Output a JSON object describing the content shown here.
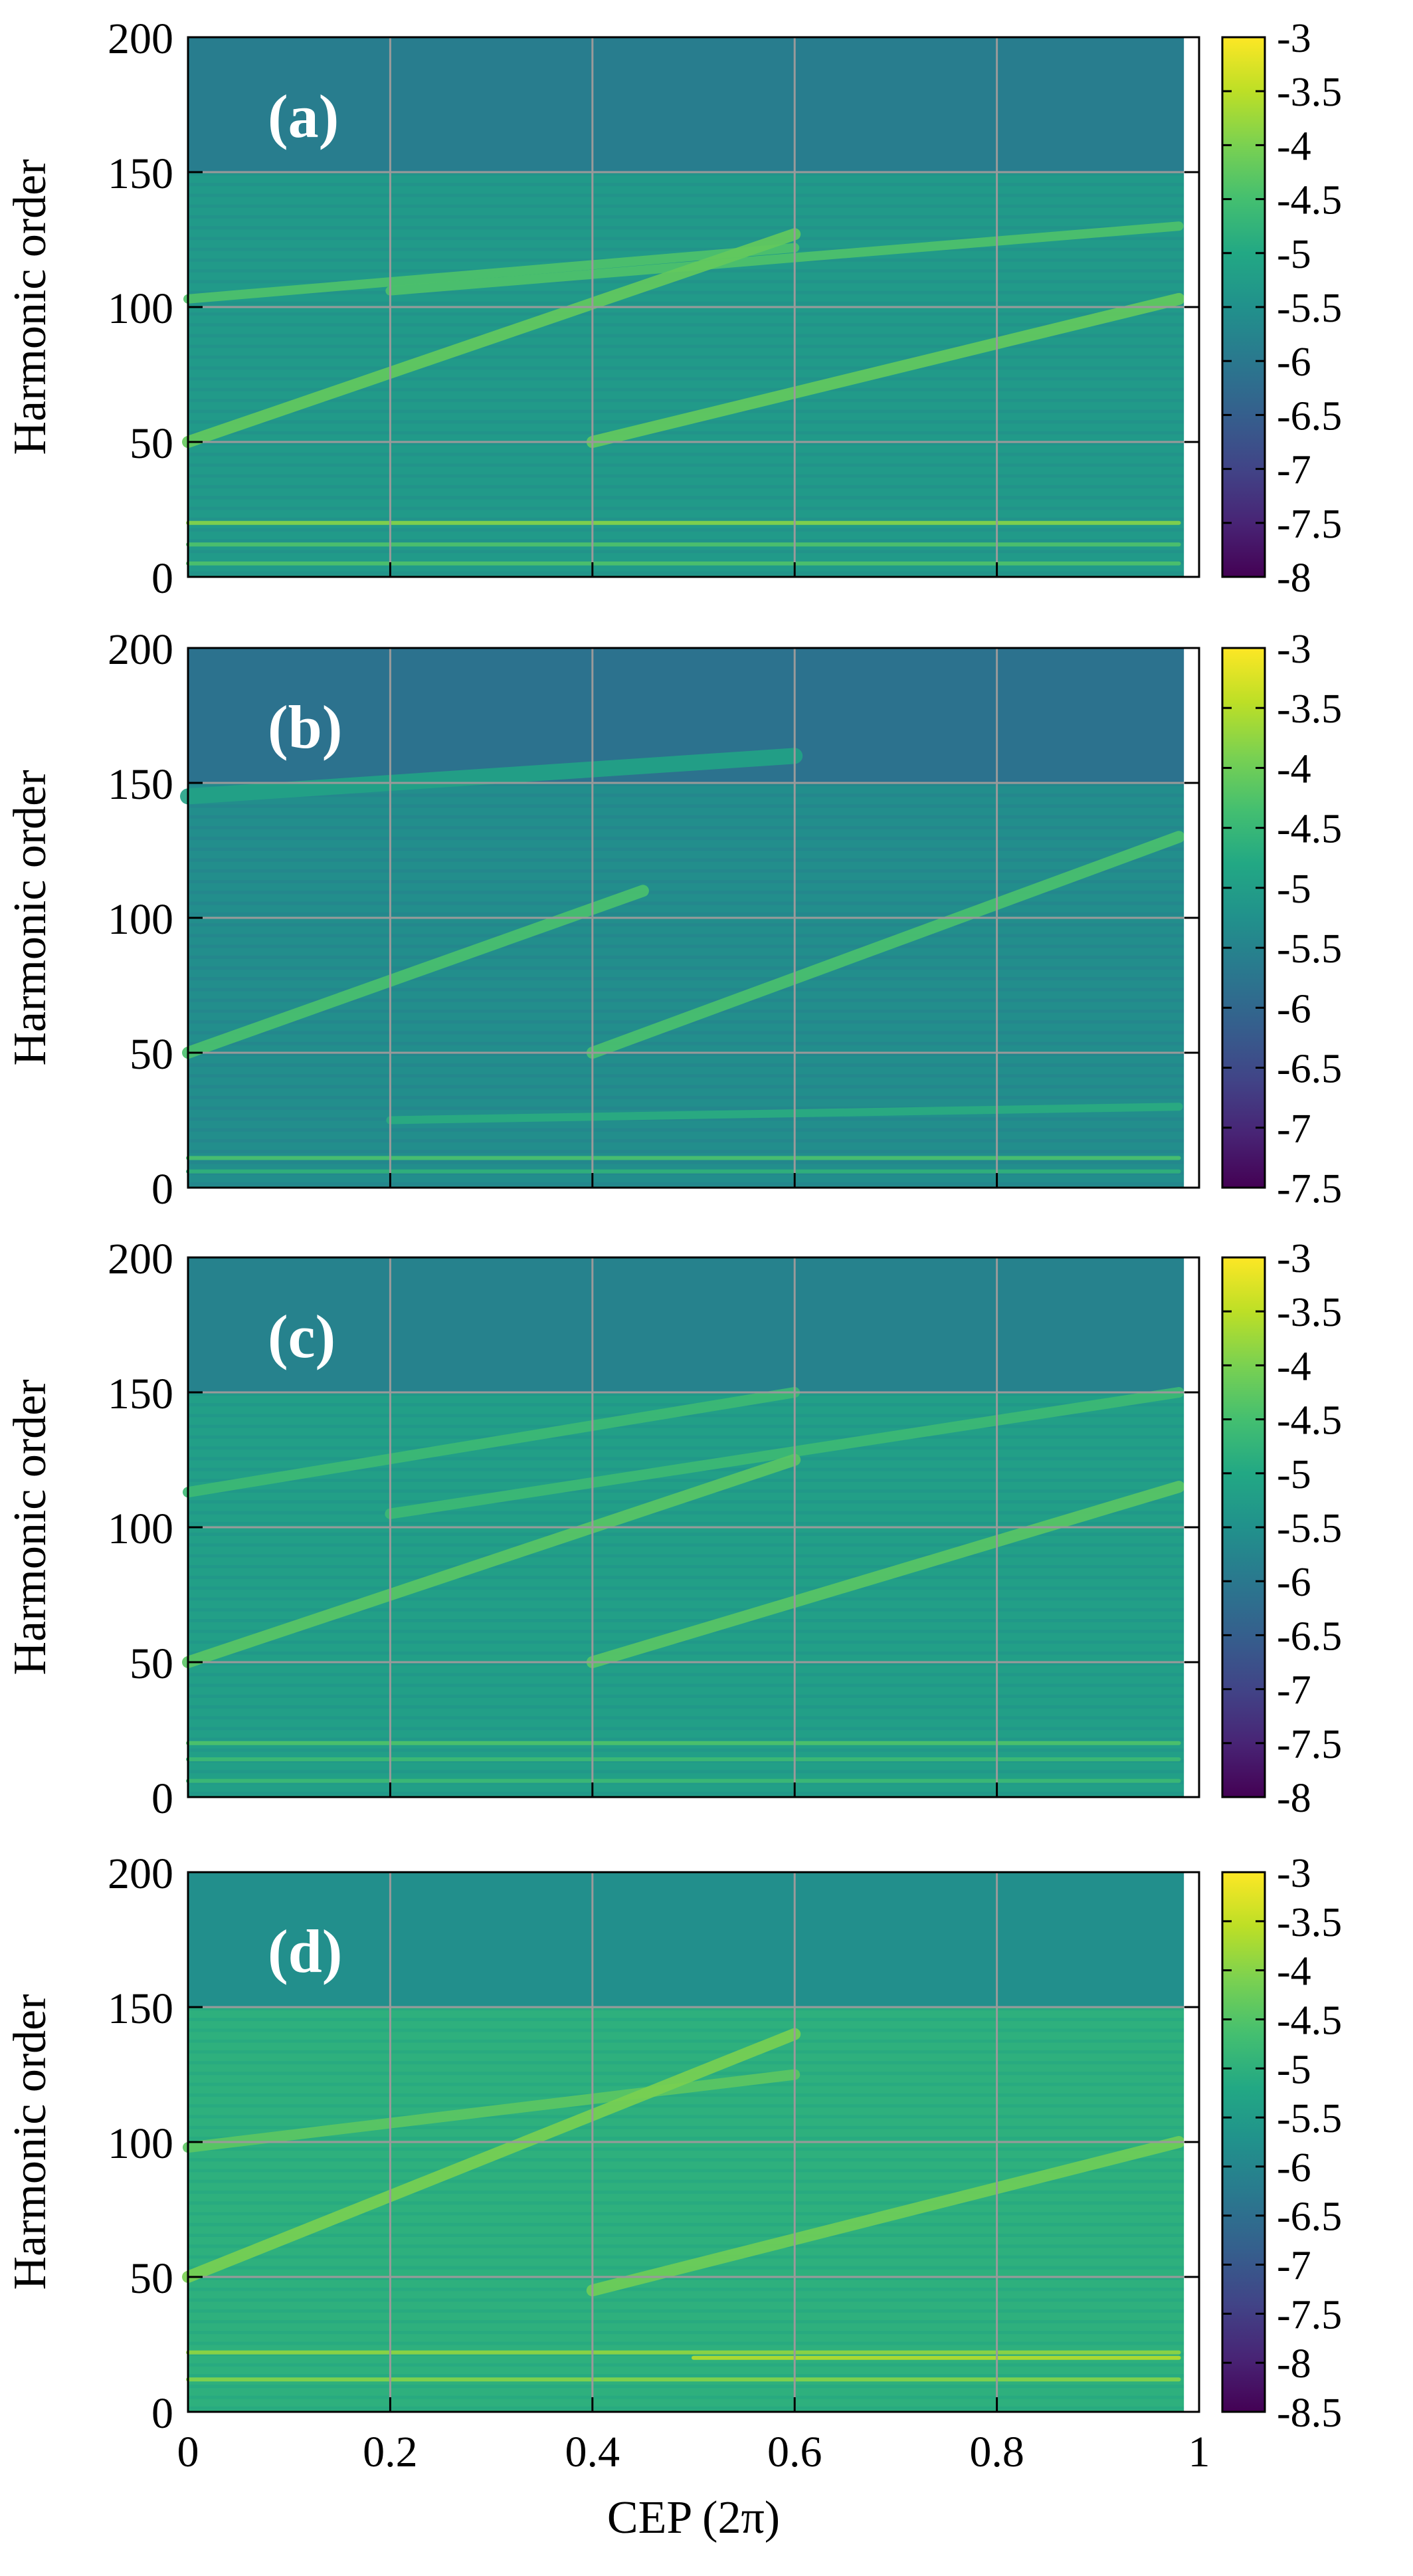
{
  "chart_data": [
    {
      "type": "heatmap",
      "panel_label": "(a)",
      "xlabel": "",
      "ylabel": "Harmonic order",
      "xlim": [
        0,
        1
      ],
      "ylim": [
        0,
        200
      ],
      "x_ticks": [
        "0",
        "0.2",
        "0.4",
        "0.6",
        "0.8",
        "1"
      ],
      "y_ticks": [
        "0",
        "50",
        "100",
        "150",
        "200"
      ],
      "colorbar": {
        "range": [
          -8,
          -3
        ],
        "ticks": [
          "-3",
          "-3.5",
          "-4",
          "-4.5",
          "-5",
          "-5.5",
          "-6",
          "-6.5",
          "-7",
          "-7.5",
          "-8"
        ]
      },
      "background_level": -5.3,
      "high_region_level": -5.9,
      "cutoff_order": 150,
      "bright_lines": [
        {
          "from": [
            0,
            103
          ],
          "to": [
            0.6,
            122
          ],
          "level": -4.4,
          "width": 7
        },
        {
          "from": [
            0.2,
            106
          ],
          "to": [
            0.98,
            130
          ],
          "level": -4.4,
          "width": 7
        },
        {
          "from": [
            0,
            50
          ],
          "to": [
            0.6,
            127
          ],
          "level": -4.2,
          "width": 9
        },
        {
          "from": [
            0.4,
            50
          ],
          "to": [
            0.98,
            103
          ],
          "level": -4.2,
          "width": 9
        },
        {
          "from": [
            0,
            20
          ],
          "to": [
            0.98,
            20
          ],
          "level": -3.9,
          "width": 3
        },
        {
          "from": [
            0,
            12
          ],
          "to": [
            0.98,
            12
          ],
          "level": -4.4,
          "width": 3
        },
        {
          "from": [
            0,
            5
          ],
          "to": [
            0.98,
            5
          ],
          "level": -4.4,
          "width": 3
        }
      ]
    },
    {
      "type": "heatmap",
      "panel_label": "(b)",
      "xlabel": "",
      "ylabel": "Harmonic order",
      "xlim": [
        0,
        1
      ],
      "ylim": [
        0,
        200
      ],
      "x_ticks": [
        "0",
        "0.2",
        "0.4",
        "0.6",
        "0.8",
        "1"
      ],
      "y_ticks": [
        "0",
        "50",
        "100",
        "150",
        "200"
      ],
      "colorbar": {
        "range": [
          -7.5,
          -3
        ],
        "ticks": [
          "-3",
          "-3.5",
          "-4",
          "-4.5",
          "-5",
          "-5.5",
          "-6",
          "-6.5",
          "-7",
          "-7.5"
        ]
      },
      "background_level": -5.3,
      "high_region_level": -5.8,
      "cutoff_order": 150,
      "bright_lines": [
        {
          "from": [
            0,
            50
          ],
          "to": [
            0.45,
            110
          ],
          "level": -4.3,
          "width": 9
        },
        {
          "from": [
            0.4,
            50
          ],
          "to": [
            0.98,
            130
          ],
          "level": -4.3,
          "width": 9
        },
        {
          "from": [
            0,
            145
          ],
          "to": [
            0.6,
            160
          ],
          "level": -4.9,
          "width": 12
        },
        {
          "from": [
            0.2,
            25
          ],
          "to": [
            0.98,
            30
          ],
          "level": -4.7,
          "width": 6
        },
        {
          "from": [
            0,
            11
          ],
          "to": [
            0.98,
            11
          ],
          "level": -4.3,
          "width": 3
        },
        {
          "from": [
            0,
            6
          ],
          "to": [
            0.98,
            6
          ],
          "level": -4.6,
          "width": 3
        }
      ]
    },
    {
      "type": "heatmap",
      "panel_label": "(c)",
      "xlabel": "",
      "ylabel": "Harmonic order",
      "xlim": [
        0,
        1
      ],
      "ylim": [
        0,
        200
      ],
      "x_ticks": [
        "0",
        "0.2",
        "0.4",
        "0.6",
        "0.8",
        "1"
      ],
      "y_ticks": [
        "0",
        "50",
        "100",
        "150",
        "200"
      ],
      "colorbar": {
        "range": [
          -8,
          -3
        ],
        "ticks": [
          "-3",
          "-3.5",
          "-4",
          "-4.5",
          "-5",
          "-5.5",
          "-6",
          "-6.5",
          "-7",
          "-7.5",
          "-8"
        ]
      },
      "background_level": -5.2,
      "high_region_level": -5.8,
      "cutoff_order": 150,
      "bright_lines": [
        {
          "from": [
            0,
            113
          ],
          "to": [
            0.6,
            150
          ],
          "level": -4.6,
          "width": 8
        },
        {
          "from": [
            0.2,
            105
          ],
          "to": [
            0.98,
            150
          ],
          "level": -4.6,
          "width": 8
        },
        {
          "from": [
            0,
            50
          ],
          "to": [
            0.6,
            125
          ],
          "level": -4.3,
          "width": 9
        },
        {
          "from": [
            0.4,
            50
          ],
          "to": [
            0.98,
            115
          ],
          "level": -4.3,
          "width": 9
        },
        {
          "from": [
            0,
            20
          ],
          "to": [
            0.98,
            20
          ],
          "level": -4.4,
          "width": 3
        },
        {
          "from": [
            0,
            14
          ],
          "to": [
            0.98,
            14
          ],
          "level": -4.6,
          "width": 3
        },
        {
          "from": [
            0,
            6
          ],
          "to": [
            0.98,
            6
          ],
          "level": -4.6,
          "width": 3
        }
      ]
    },
    {
      "type": "heatmap",
      "panel_label": "(d)",
      "xlabel": "CEP (2π)",
      "ylabel": "Harmonic order",
      "xlim": [
        0,
        1
      ],
      "ylim": [
        0,
        200
      ],
      "x_ticks": [
        "0",
        "0.2",
        "0.4",
        "0.6",
        "0.8",
        "1"
      ],
      "y_ticks": [
        "0",
        "50",
        "100",
        "150",
        "200"
      ],
      "colorbar": {
        "range": [
          -8.5,
          -3
        ],
        "ticks": [
          "-3",
          "-3.5",
          "-4",
          "-4.5",
          "-5",
          "-5.5",
          "-6",
          "-6.5",
          "-7",
          "-7.5",
          "-8",
          "-8.5"
        ]
      },
      "background_level": -5.0,
      "high_region_level": -5.8,
      "cutoff_order": 150,
      "bright_lines": [
        {
          "from": [
            0,
            98
          ],
          "to": [
            0.6,
            125
          ],
          "level": -4.4,
          "width": 8
        },
        {
          "from": [
            0,
            50
          ],
          "to": [
            0.6,
            140
          ],
          "level": -4.1,
          "width": 9
        },
        {
          "from": [
            0.4,
            45
          ],
          "to": [
            0.98,
            100
          ],
          "level": -4.2,
          "width": 9
        },
        {
          "from": [
            0,
            22
          ],
          "to": [
            0.98,
            22
          ],
          "level": -3.9,
          "width": 3
        },
        {
          "from": [
            0,
            12
          ],
          "to": [
            0.98,
            12
          ],
          "level": -4.0,
          "width": 3
        },
        {
          "from": [
            0.5,
            20
          ],
          "to": [
            0.98,
            20
          ],
          "level": -3.6,
          "width": 3
        }
      ]
    }
  ]
}
